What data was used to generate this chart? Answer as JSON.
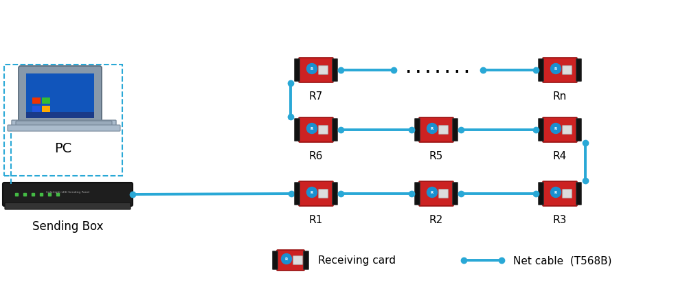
{
  "bg_color": "#ffffff",
  "cable_color": "#29a8d6",
  "dashed_color": "#29a8d6",
  "text_color": "#000000",
  "label_fontsize": 11,
  "legend_fontsize": 11,
  "pc_label": "PC",
  "box_label": "Sending Box",
  "legend_card": "Receiving card",
  "legend_cable": "Net cable  (T568B)",
  "card_labels": [
    "R7",
    "Rn",
    "R6",
    "R5",
    "R4",
    "R1",
    "R2",
    "R3"
  ],
  "dots_text": ". . . . . . .",
  "card_color": "#cc2222",
  "card_border": "#880000",
  "box_color": "#1a1a1a",
  "pc_box_color": "#cccccc"
}
